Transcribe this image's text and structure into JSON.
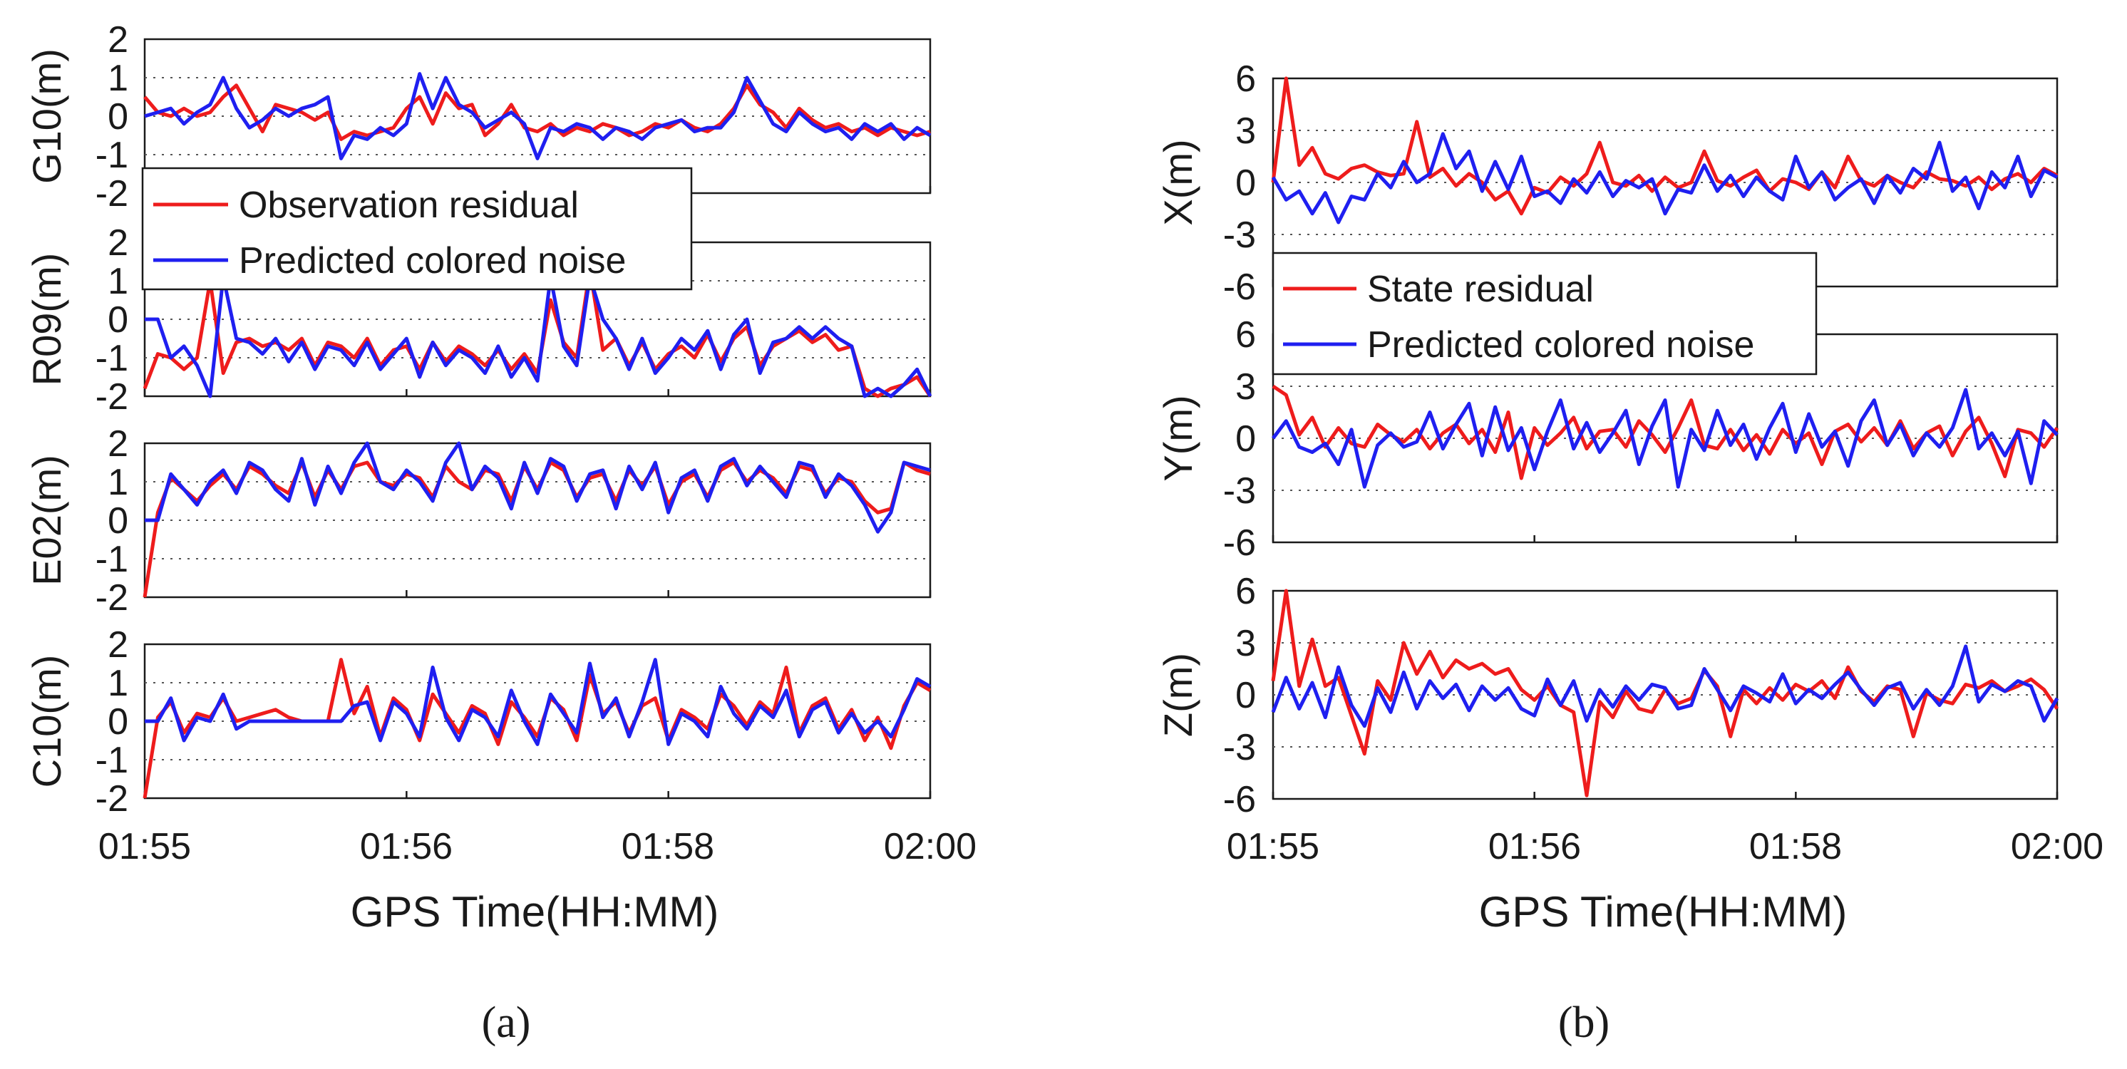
{
  "figure": {
    "caption_a": "(a)",
    "caption_b": "(b)"
  },
  "panel_a": {
    "xlabel": "GPS Time(HH:MM)",
    "xticks": [
      "01:55",
      "01:56",
      "01:58",
      "02:00"
    ],
    "legend": [
      "Observation residual",
      "Predicted colored noise"
    ]
  },
  "panel_b": {
    "xlabel": "GPS Time(HH:MM)",
    "xticks": [
      "01:55",
      "01:56",
      "01:58",
      "02:00"
    ],
    "legend": [
      "State residual",
      "Predicted colored noise"
    ]
  },
  "colors": {
    "red": "#ee1c1c",
    "blue": "#1f1ff0"
  },
  "chart_data": [
    {
      "type": "line",
      "panel": "a",
      "ylabel": "G10(m)",
      "ylim": [
        -2,
        2
      ],
      "yticks": [
        -2,
        -1,
        0,
        1,
        2
      ],
      "xlim": [
        0,
        60
      ],
      "series": [
        {
          "name": "Observation residual",
          "color": "red",
          "values": [
            0.5,
            0.1,
            0,
            0.2,
            0,
            0.1,
            0.5,
            0.8,
            0.2,
            -0.4,
            0.3,
            0.2,
            0.1,
            -0.1,
            0.1,
            -0.6,
            -0.4,
            -0.5,
            -0.4,
            -0.3,
            0.2,
            0.5,
            -0.2,
            0.6,
            0.2,
            0.3,
            -0.5,
            -0.2,
            0.3,
            -0.3,
            -0.4,
            -0.2,
            -0.5,
            -0.3,
            -0.4,
            -0.2,
            -0.3,
            -0.5,
            -0.4,
            -0.2,
            -0.3,
            -0.1,
            -0.3,
            -0.4,
            -0.2,
            0.2,
            0.8,
            0.3,
            0.1,
            -0.3,
            0.2,
            -0.1,
            -0.3,
            -0.2,
            -0.4,
            -0.3,
            -0.5,
            -0.3,
            -0.4,
            -0.5,
            -0.4
          ]
        },
        {
          "name": "Predicted colored noise",
          "color": "blue",
          "values": [
            0,
            0.1,
            0.2,
            -0.2,
            0.1,
            0.3,
            1,
            0.2,
            -0.3,
            -0.1,
            0.2,
            0,
            0.2,
            0.3,
            0.5,
            -1.1,
            -0.5,
            -0.6,
            -0.3,
            -0.5,
            -0.2,
            1.1,
            0.2,
            1,
            0.3,
            0.1,
            -0.3,
            -0.1,
            0.1,
            -0.2,
            -1.1,
            -0.3,
            -0.4,
            -0.2,
            -0.3,
            -0.6,
            -0.3,
            -0.4,
            -0.6,
            -0.3,
            -0.2,
            -0.1,
            -0.4,
            -0.3,
            -0.3,
            0.1,
            1,
            0.4,
            -0.2,
            -0.4,
            0.1,
            -0.2,
            -0.4,
            -0.3,
            -0.6,
            -0.2,
            -0.4,
            -0.2,
            -0.6,
            -0.3,
            -0.5
          ]
        }
      ]
    },
    {
      "type": "line",
      "panel": "a",
      "ylabel": "R09(m)",
      "ylim": [
        -2,
        2
      ],
      "yticks": [
        -2,
        -1,
        0,
        1,
        2
      ],
      "xlim": [
        0,
        60
      ],
      "series": [
        {
          "name": "Observation residual",
          "color": "red",
          "values": [
            -1.8,
            -0.9,
            -1,
            -1.3,
            -1,
            1,
            -1.4,
            -0.6,
            -0.5,
            -0.7,
            -0.6,
            -0.8,
            -0.5,
            -1.2,
            -0.6,
            -0.7,
            -1,
            -0.5,
            -1.2,
            -0.8,
            -0.7,
            -1.3,
            -0.6,
            -1.1,
            -0.7,
            -0.9,
            -1.2,
            -0.8,
            -1.3,
            -0.9,
            -1.4,
            0.5,
            -0.6,
            -1,
            1.3,
            -0.8,
            -0.5,
            -1.2,
            -0.6,
            -1.3,
            -0.9,
            -0.7,
            -1,
            -0.4,
            -1.1,
            -0.5,
            -0.2,
            -1.2,
            -0.7,
            -0.5,
            -0.3,
            -0.6,
            -0.4,
            -0.8,
            -0.7,
            -1.8,
            -2,
            -1.8,
            -1.7,
            -1.5,
            -2
          ]
        },
        {
          "name": "Predicted colored noise",
          "color": "blue",
          "values": [
            0,
            0,
            -1,
            -0.7,
            -1.2,
            -2,
            1.1,
            -0.5,
            -0.6,
            -0.9,
            -0.5,
            -1.1,
            -0.6,
            -1.3,
            -0.7,
            -0.8,
            -1.2,
            -0.6,
            -1.3,
            -0.9,
            -0.5,
            -1.5,
            -0.6,
            -1.2,
            -0.8,
            -1,
            -1.4,
            -0.7,
            -1.5,
            -1,
            -1.6,
            1.1,
            -0.7,
            -1.2,
            1.1,
            0,
            -0.5,
            -1.3,
            -0.5,
            -1.4,
            -1,
            -0.5,
            -0.8,
            -0.3,
            -1.3,
            -0.4,
            0,
            -1.4,
            -0.6,
            -0.5,
            -0.2,
            -0.5,
            -0.2,
            -0.5,
            -0.7,
            -2,
            -1.8,
            -2.1,
            -1.7,
            -1.3,
            -2
          ]
        }
      ]
    },
    {
      "type": "line",
      "panel": "a",
      "ylabel": "E02(m)",
      "ylim": [
        -2,
        2
      ],
      "yticks": [
        -2,
        -1,
        0,
        1,
        2
      ],
      "xlim": [
        0,
        60
      ],
      "series": [
        {
          "name": "Observation residual",
          "color": "red",
          "values": [
            -2,
            0.2,
            1.1,
            0.8,
            0.5,
            0.9,
            1.2,
            0.8,
            1.4,
            1.2,
            0.9,
            0.7,
            1.5,
            0.6,
            1.3,
            0.8,
            1.4,
            1.5,
            1.0,
            0.9,
            1.2,
            1.1,
            0.6,
            1.4,
            1.0,
            0.8,
            1.3,
            1.2,
            0.5,
            1.4,
            0.8,
            1.5,
            1.3,
            0.6,
            1.1,
            1.2,
            0.5,
            1.3,
            0.9,
            1.4,
            0.4,
            1.0,
            1.2,
            0.6,
            1.3,
            1.5,
            1.0,
            1.3,
            1.1,
            0.7,
            1.4,
            1.3,
            0.7,
            1.1,
            1.0,
            0.5,
            0.2,
            0.3,
            1.5,
            1.3,
            1.2
          ]
        },
        {
          "name": "Predicted colored noise",
          "color": "blue",
          "values": [
            0,
            0,
            1.2,
            0.8,
            0.4,
            1.0,
            1.3,
            0.7,
            1.5,
            1.3,
            0.8,
            0.5,
            1.6,
            0.4,
            1.4,
            0.7,
            1.5,
            2.0,
            1.0,
            0.8,
            1.3,
            1.0,
            0.5,
            1.5,
            2.0,
            0.8,
            1.4,
            1.1,
            0.3,
            1.5,
            0.7,
            1.6,
            1.4,
            0.5,
            1.2,
            1.3,
            0.3,
            1.4,
            0.8,
            1.5,
            0.2,
            1.1,
            1.3,
            0.5,
            1.4,
            1.6,
            0.9,
            1.4,
            1.0,
            0.6,
            1.5,
            1.4,
            0.6,
            1.2,
            0.9,
            0.4,
            -0.3,
            0.2,
            1.5,
            1.4,
            1.3
          ]
        }
      ]
    },
    {
      "type": "line",
      "panel": "a",
      "ylabel": "C10(m)",
      "ylim": [
        -2,
        2
      ],
      "yticks": [
        -2,
        -1,
        0,
        1,
        2
      ],
      "xlim": [
        0,
        60
      ],
      "series": [
        {
          "name": "Observation residual",
          "color": "red",
          "values": [
            -2,
            0.1,
            0.5,
            -0.3,
            0.2,
            0.1,
            0.6,
            0,
            0.1,
            0.2,
            0.3,
            0.1,
            0,
            0,
            0,
            1.6,
            0.2,
            0.9,
            -0.4,
            0.6,
            0.3,
            -0.5,
            0.7,
            0.2,
            -0.3,
            0.4,
            0.2,
            -0.6,
            0.5,
            0.1,
            -0.4,
            0.6,
            0.3,
            -0.5,
            1.2,
            0.2,
            0.5,
            -0.3,
            0.4,
            0.6,
            -0.5,
            0.3,
            0.1,
            -0.2,
            0.7,
            0.4,
            -0.1,
            0.5,
            0.2,
            1.4,
            -0.3,
            0.4,
            0.6,
            -0.2,
            0.3,
            -0.5,
            0.1,
            -0.7,
            0.4,
            1.0,
            0.8
          ]
        },
        {
          "name": "Predicted colored noise",
          "color": "blue",
          "values": [
            0,
            0,
            0.6,
            -0.5,
            0.1,
            0,
            0.7,
            -0.2,
            0,
            0,
            0,
            0,
            0,
            0,
            0,
            0,
            0.4,
            0.5,
            -0.5,
            0.5,
            0.2,
            -0.4,
            1.4,
            0.1,
            -0.5,
            0.3,
            0.1,
            -0.4,
            0.8,
            0,
            -0.6,
            0.7,
            0.2,
            -0.3,
            1.5,
            0.1,
            0.6,
            -0.4,
            0.5,
            1.6,
            -0.6,
            0.2,
            0,
            -0.4,
            0.9,
            0.2,
            -0.2,
            0.4,
            0.1,
            0.8,
            -0.4,
            0.3,
            0.5,
            -0.3,
            0.2,
            -0.3,
            0,
            -0.4,
            0.3,
            1.1,
            0.9
          ]
        }
      ]
    },
    {
      "type": "line",
      "panel": "b",
      "ylabel": "X(m)",
      "ylim": [
        -6,
        6
      ],
      "yticks": [
        -6,
        -3,
        0,
        3,
        6
      ],
      "xlim": [
        0,
        60
      ],
      "series": [
        {
          "name": "State residual",
          "color": "red",
          "values": [
            0,
            6,
            1,
            2,
            0.5,
            0.2,
            0.8,
            1,
            0.6,
            0.4,
            0.5,
            3.5,
            0.3,
            0.8,
            -0.2,
            0.5,
            0,
            -1,
            -0.5,
            -1.8,
            -0.3,
            -0.6,
            0.3,
            -0.2,
            0.5,
            2.3,
            0,
            -0.2,
            0.4,
            -0.5,
            0.3,
            -0.3,
            0,
            1.8,
            0.1,
            -0.2,
            0.3,
            0.7,
            -0.5,
            0.2,
            0,
            -0.4,
            0.6,
            -0.3,
            1.5,
            0.1,
            -0.2,
            0.4,
            0,
            -0.3,
            0.6,
            0.2,
            0.1,
            -0.2,
            0.3,
            -0.4,
            0.2,
            0.5,
            0,
            0.8,
            0.4
          ]
        },
        {
          "name": "Predicted colored noise",
          "color": "blue",
          "values": [
            0.3,
            -1,
            -0.5,
            -1.8,
            -0.6,
            -2.3,
            -0.8,
            -1,
            0.5,
            -0.3,
            1.2,
            0,
            0.5,
            2.8,
            0.8,
            1.8,
            -0.5,
            1.2,
            -0.4,
            1.5,
            -0.8,
            -0.5,
            -1.2,
            0.2,
            -0.6,
            0.6,
            -0.8,
            0.1,
            -0.3,
            0.2,
            -1.8,
            -0.4,
            -0.6,
            1.0,
            -0.5,
            0.4,
            -0.8,
            0.3,
            -0.5,
            -1.0,
            1.5,
            -0.3,
            0.6,
            -1.0,
            -0.3,
            0.2,
            -1.2,
            0.4,
            -0.6,
            0.8,
            0.2,
            2.3,
            -0.5,
            0.3,
            -1.5,
            0.6,
            -0.3,
            1.5,
            -0.8,
            0.7,
            0.3
          ]
        }
      ]
    },
    {
      "type": "line",
      "panel": "b",
      "ylabel": "Y(m)",
      "ylim": [
        -6,
        6
      ],
      "yticks": [
        -6,
        -3,
        0,
        3,
        6
      ],
      "xlim": [
        0,
        60
      ],
      "series": [
        {
          "name": "State residual",
          "color": "red",
          "values": [
            3,
            2.5,
            0.2,
            1.2,
            -0.5,
            0.6,
            -0.3,
            -0.5,
            0.8,
            0.2,
            -0.2,
            0.5,
            -0.6,
            0.3,
            0.8,
            -0.3,
            0.5,
            -0.8,
            1.5,
            -2.3,
            0.6,
            -0.4,
            0.3,
            1.2,
            -0.6,
            0.4,
            0.5,
            -0.5,
            1.0,
            0.2,
            -0.8,
            0.6,
            2.2,
            -0.4,
            -0.6,
            0.5,
            -0.7,
            0.2,
            -0.9,
            0.5,
            -0.3,
            0.3,
            -1.5,
            0.4,
            0.8,
            -0.2,
            0.6,
            -0.4,
            1.0,
            -0.6,
            0.3,
            0.7,
            -1.0,
            0.4,
            1.2,
            -0.3,
            -2.2,
            0.5,
            0.3,
            -0.5,
            0.6
          ]
        },
        {
          "name": "Predicted colored noise",
          "color": "blue",
          "values": [
            0,
            1,
            -0.5,
            -0.8,
            -0.3,
            -1.5,
            0.5,
            -2.8,
            -0.4,
            0.3,
            -0.5,
            -0.2,
            1.5,
            -0.6,
            0.8,
            2.0,
            -1.0,
            1.8,
            -0.7,
            0.6,
            -1.8,
            0.4,
            2.2,
            -0.6,
            0.9,
            -0.8,
            0.3,
            1.6,
            -1.5,
            0.7,
            2.2,
            -2.8,
            0.5,
            -0.7,
            1.6,
            -0.4,
            0.8,
            -1.2,
            0.6,
            2.0,
            -0.8,
            1.4,
            -0.5,
            0.4,
            -1.6,
            1.0,
            2.2,
            -0.4,
            0.8,
            -1.0,
            0.3,
            -0.5,
            0.6,
            2.8,
            -0.6,
            0.3,
            -1.0,
            0.4,
            -2.6,
            1.0,
            0.2
          ]
        }
      ]
    },
    {
      "type": "line",
      "panel": "b",
      "ylabel": "Z(m)",
      "ylim": [
        -6,
        6
      ],
      "yticks": [
        -6,
        -3,
        0,
        3,
        6
      ],
      "xlim": [
        0,
        60
      ],
      "series": [
        {
          "name": "State residual",
          "color": "red",
          "values": [
            0.8,
            6,
            0.5,
            3.2,
            0.5,
            1.0,
            -1.2,
            -3.4,
            0.8,
            -0.3,
            3.0,
            1.2,
            2.5,
            1.0,
            2.0,
            1.5,
            1.8,
            1.2,
            1.5,
            0.3,
            -0.3,
            0.5,
            -0.6,
            -1.0,
            -5.8,
            -0.4,
            -1.3,
            0.2,
            -0.8,
            -1.0,
            0.3,
            -0.5,
            -0.2,
            1.4,
            0.5,
            -2.4,
            0.3,
            -0.5,
            0.4,
            -0.3,
            0.6,
            0.2,
            0.8,
            -0.2,
            1.6,
            0.2,
            -0.4,
            0.5,
            0.3,
            -2.4,
            0.1,
            -0.3,
            -0.5,
            0.6,
            0.4,
            0.8,
            0.2,
            0.5,
            0.9,
            0.3,
            -0.8
          ]
        },
        {
          "name": "Predicted colored noise",
          "color": "blue",
          "values": [
            -1,
            1,
            -0.8,
            0.7,
            -1.3,
            1.6,
            -0.6,
            -1.8,
            0.4,
            -1.0,
            1.3,
            -0.8,
            0.8,
            -0.2,
            0.6,
            -0.9,
            0.5,
            -0.3,
            0.4,
            -0.8,
            -1.2,
            0.9,
            -0.6,
            0.8,
            -1.5,
            0.3,
            -0.7,
            0.5,
            -0.3,
            0.6,
            0.4,
            -0.8,
            -0.6,
            1.5,
            0.3,
            -0.9,
            0.5,
            0.1,
            -0.4,
            1.2,
            -0.5,
            0.3,
            -0.2,
            0.6,
            1.3,
            0.3,
            -0.6,
            0.4,
            0.7,
            -0.8,
            0.3,
            -0.6,
            0.5,
            2.8,
            -0.4,
            0.6,
            0.2,
            0.8,
            0.5,
            -1.5,
            -0.2
          ]
        }
      ]
    }
  ]
}
